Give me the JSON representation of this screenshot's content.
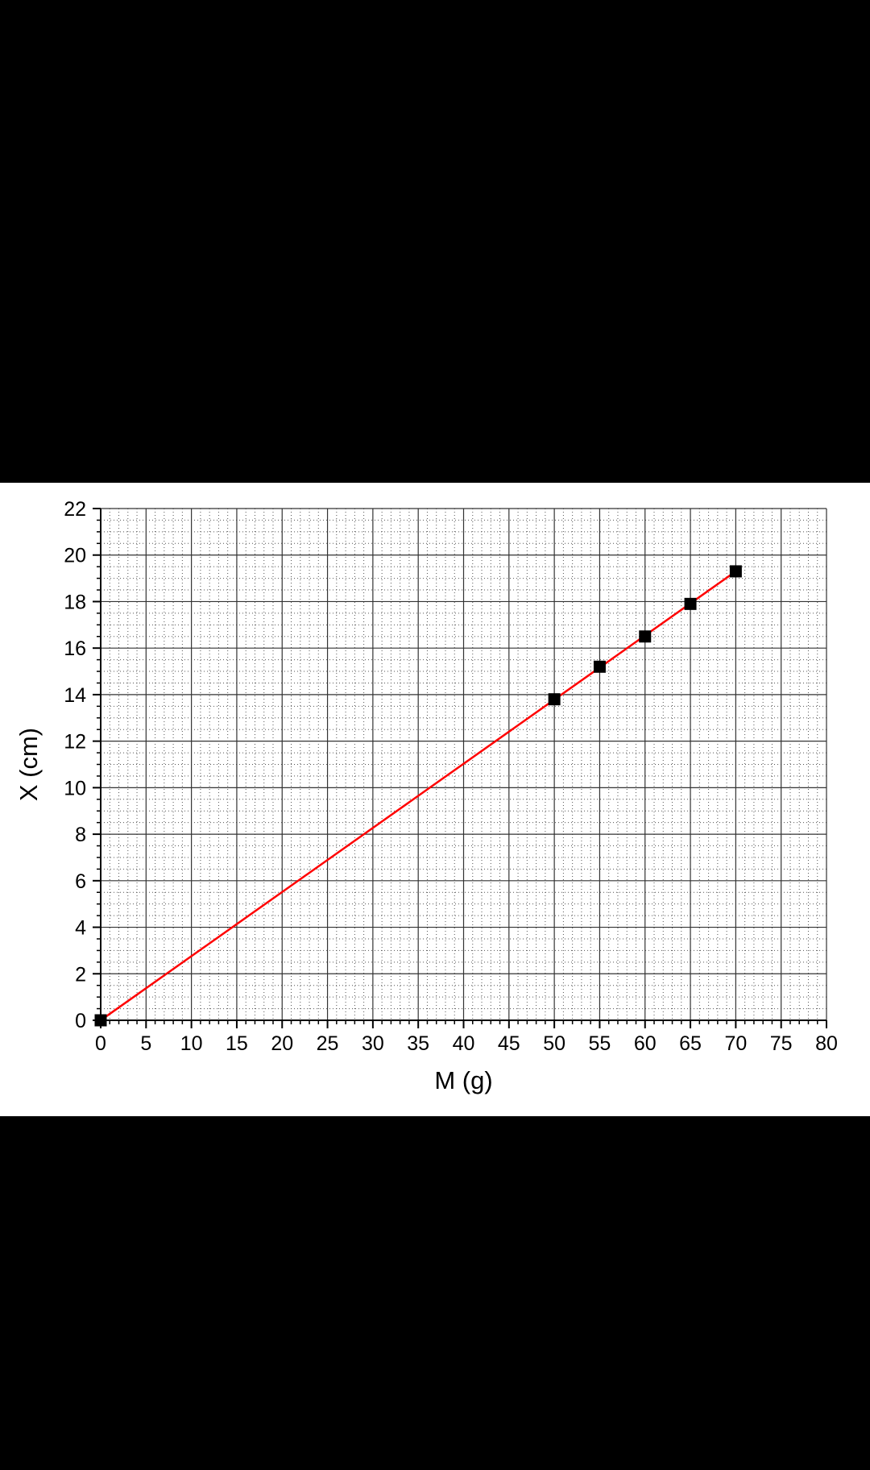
{
  "chart_data": {
    "type": "scatter",
    "title": "",
    "xlabel": "M (g)",
    "ylabel": "X (cm)",
    "xlim": [
      0,
      80
    ],
    "ylim": [
      0,
      22
    ],
    "x_ticks": [
      0,
      5,
      10,
      15,
      20,
      25,
      30,
      35,
      40,
      45,
      50,
      55,
      60,
      65,
      70,
      75,
      80
    ],
    "y_ticks": [
      0,
      2,
      4,
      6,
      8,
      10,
      12,
      14,
      16,
      18,
      20,
      22
    ],
    "grid": "on (major solid, minor dotted)",
    "series": [
      {
        "marker": "square",
        "color": "#000000",
        "points": [
          {
            "x": 0,
            "y": 0
          },
          {
            "x": 50,
            "y": 13.8
          },
          {
            "x": 55,
            "y": 15.2
          },
          {
            "x": 60,
            "y": 16.5
          },
          {
            "x": 65,
            "y": 17.9
          },
          {
            "x": 70,
            "y": 19.3
          }
        ]
      }
    ],
    "fit_line": {
      "color": "#ff0000",
      "from": {
        "x": 0,
        "y": 0
      },
      "to": {
        "x": 70,
        "y": 19.3
      }
    }
  }
}
